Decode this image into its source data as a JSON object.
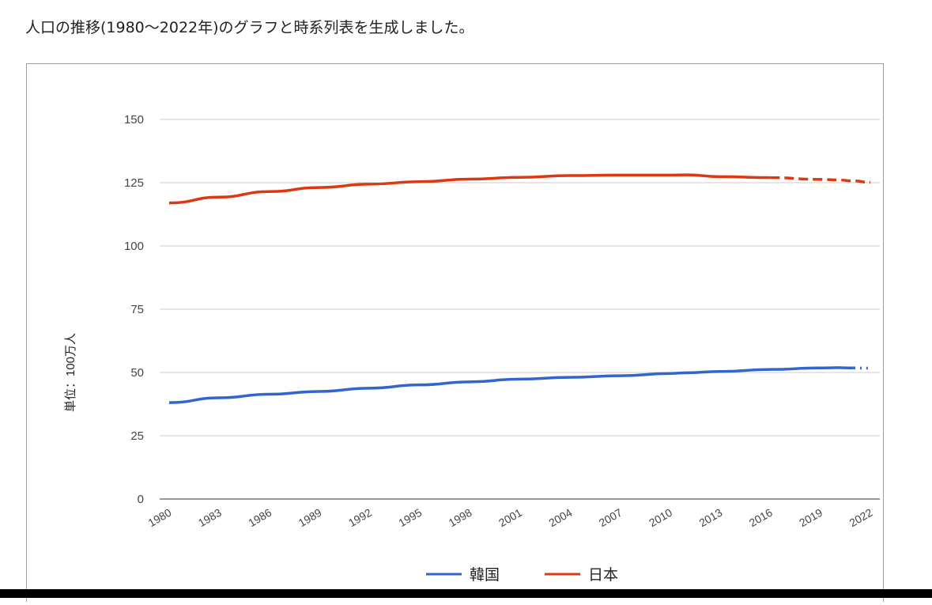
{
  "message": "人口の推移(1980〜2022年)のグラフと時系列表を生成しました。",
  "chart_data": {
    "type": "line",
    "ylabel": "単位：100万人",
    "ylim": [
      0,
      150
    ],
    "yticks": [
      0,
      25,
      50,
      75,
      100,
      125,
      150
    ],
    "xticks": [
      "1980",
      "1983",
      "1986",
      "1989",
      "1992",
      "1995",
      "1998",
      "2001",
      "2004",
      "2007",
      "2010",
      "2013",
      "2016",
      "2019",
      "2022"
    ],
    "grid": true,
    "legend": "bottom",
    "x": [
      1980,
      1983,
      1986,
      1989,
      1992,
      1995,
      1998,
      2001,
      2004,
      2007,
      2010,
      2011,
      2013,
      2016,
      2019,
      2020,
      2021,
      2022
    ],
    "series": [
      {
        "name": "韓国",
        "color": "#3366cc",
        "values": [
          38.1,
          40.0,
          41.4,
          42.5,
          43.8,
          45.1,
          46.3,
          47.4,
          48.1,
          48.7,
          49.6,
          49.9,
          50.4,
          51.2,
          51.8,
          51.9,
          51.8,
          51.7
        ],
        "dashed_from": 2021
      },
      {
        "name": "日本",
        "color": "#dc3912",
        "values": [
          117.0,
          119.3,
          121.5,
          123.1,
          124.4,
          125.4,
          126.4,
          127.1,
          127.8,
          128.0,
          128.0,
          128.1,
          127.4,
          127.0,
          126.3,
          126.1,
          125.7,
          125.1
        ],
        "dashed_from": 2016
      }
    ]
  }
}
